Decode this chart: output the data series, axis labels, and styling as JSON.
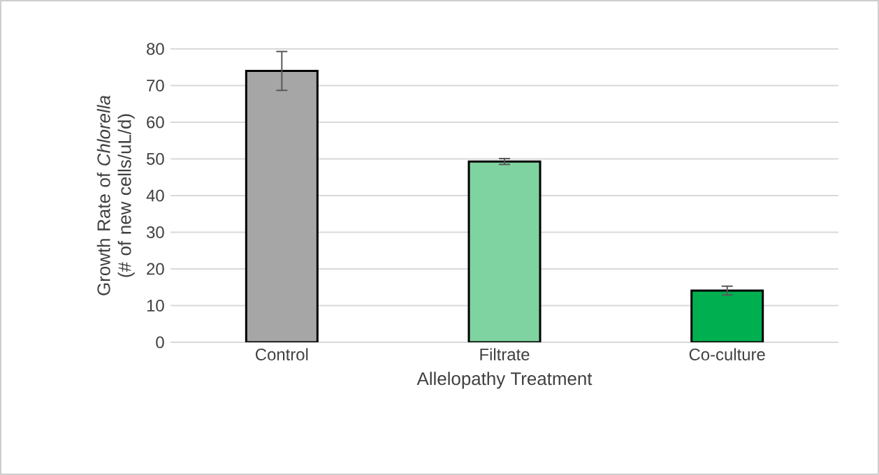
{
  "chart_data": {
    "type": "bar",
    "xlabel": "Allelopathy Treatment",
    "ylabel": "Growth Rate of *Chlorella* (# of new cells/uL/d)",
    "categories": [
      "Control",
      "Filtrate",
      "Co-culture"
    ],
    "values": [
      74,
      49.3,
      14.1
    ],
    "errors": [
      5.3,
      0.8,
      1.2
    ],
    "colors": [
      "#a6a6a6",
      "#7fd3a0",
      "#00b050"
    ],
    "ylim": [
      0,
      80
    ],
    "yticks": [
      0,
      10,
      20,
      30,
      40,
      50,
      60,
      70,
      80
    ],
    "grid": "y"
  }
}
